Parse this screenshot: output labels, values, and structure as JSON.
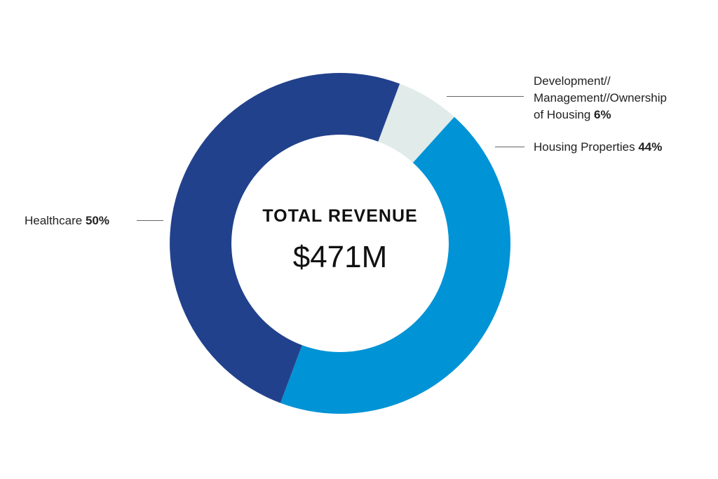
{
  "chart_data": {
    "type": "pie",
    "variant": "donut",
    "center_title": "TOTAL REVENUE",
    "center_value": "$471M",
    "slices": [
      {
        "label": "Development// Management//Ownership of Housing",
        "label_lines": [
          "Development//",
          "Management//Ownership",
          "of Housing"
        ],
        "value": 6,
        "value_label": "6%",
        "color": "#e0ebea"
      },
      {
        "label": "Housing Properties",
        "value": 44,
        "value_label": "44%",
        "color": "#0093d5"
      },
      {
        "label": "Healthcare",
        "value": 50,
        "value_label": "50%",
        "color": "#22418c"
      }
    ]
  }
}
